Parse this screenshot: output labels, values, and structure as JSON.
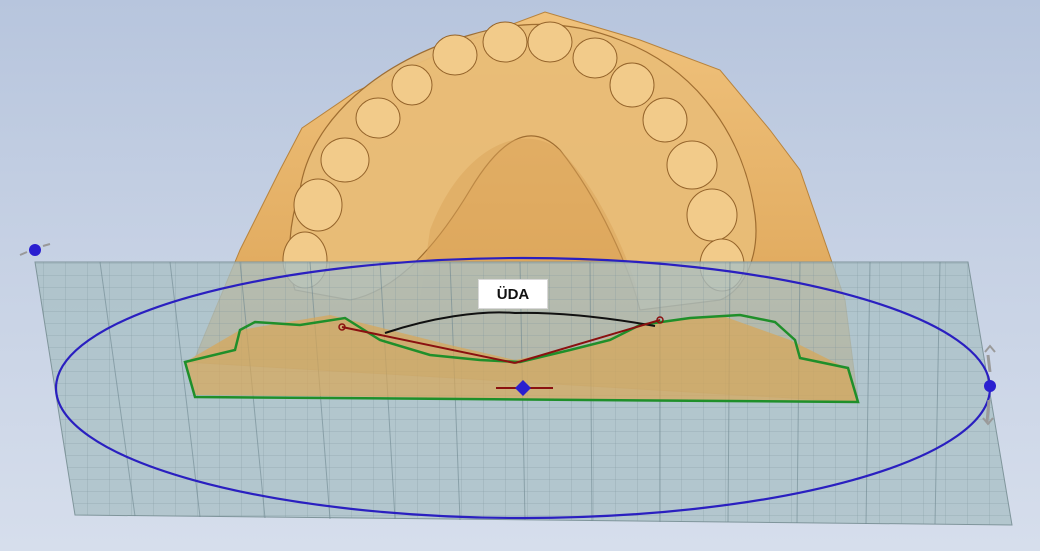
{
  "viewport": {
    "annotation_label": "ÜDA"
  },
  "colors": {
    "background_top": "#b7c5dd",
    "background_bottom": "#d6deec",
    "model_fill": "#e4b36a",
    "model_shadow": "#b8833c",
    "plane_fill": "#a9c0c5",
    "plane_grid": "#6e8790",
    "ellipse": "#2a1fc0",
    "cut_outline": "#1f8f2a",
    "arc": "#111111",
    "measure_lines": "#8a1010",
    "handle": "#2a1fd0"
  },
  "icons": {
    "handle_left": "move-handle-icon",
    "handle_right": "rotate-handle-icon",
    "handle_center": "center-handle-icon"
  }
}
